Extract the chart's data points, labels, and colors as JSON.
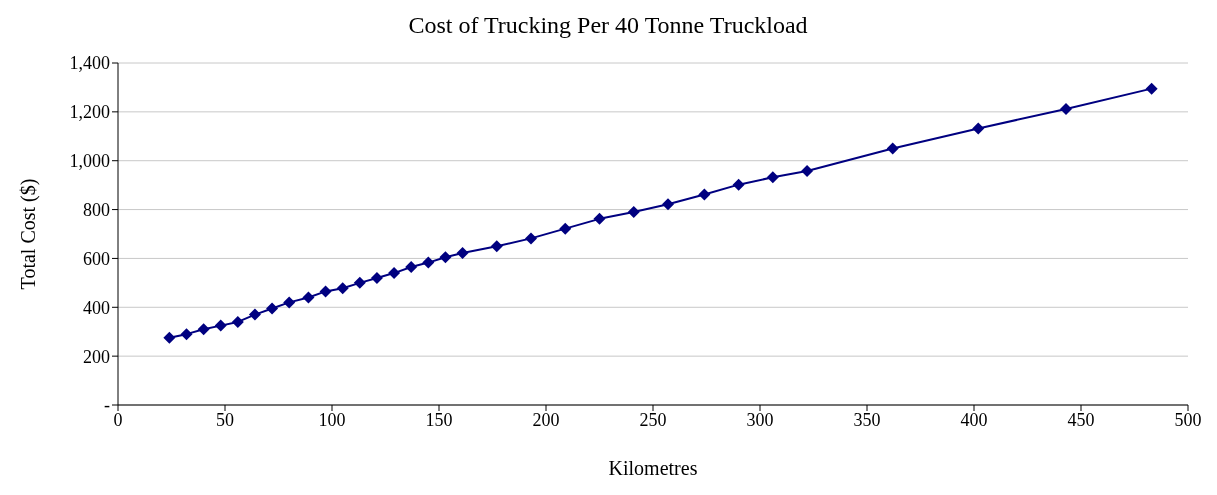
{
  "chart_data": {
    "type": "line",
    "title": "Cost of Trucking Per 40 Tonne Truckload",
    "xlabel": "Kilometres",
    "ylabel": "Total Cost ($)",
    "x": [
      24,
      32,
      40,
      48,
      56,
      64,
      72,
      80,
      89,
      97,
      105,
      113,
      121,
      129,
      137,
      145,
      153,
      161,
      177,
      193,
      209,
      225,
      241,
      257,
      274,
      290,
      306,
      322,
      362,
      402,
      443,
      483
    ],
    "series": [
      {
        "color": "#000080",
        "values": [
          275,
          290,
          310,
          325,
          340,
          370,
          395,
          420,
          440,
          465,
          478,
          500,
          520,
          540,
          565,
          583,
          605,
          622,
          650,
          682,
          722,
          762,
          790,
          822,
          862,
          902,
          932,
          958,
          1050,
          1132,
          1212,
          1295
        ]
      }
    ],
    "xlim": [
      0,
      500
    ],
    "xticks": [
      0,
      50,
      100,
      150,
      200,
      250,
      300,
      350,
      400,
      450,
      500
    ],
    "ylim": [
      0,
      1400
    ],
    "yticks": [
      {
        "value": 0,
        "label": "-"
      },
      {
        "value": 200,
        "label": "200"
      },
      {
        "value": 400,
        "label": "400"
      },
      {
        "value": 600,
        "label": "600"
      },
      {
        "value": 800,
        "label": "800"
      },
      {
        "value": 1000,
        "label": "1,000"
      },
      {
        "value": 1200,
        "label": "1,200"
      },
      {
        "value": 1400,
        "label": "1,400"
      }
    ],
    "grid": "y",
    "marker": "diamond",
    "line_style": "solid",
    "legend": false
  }
}
